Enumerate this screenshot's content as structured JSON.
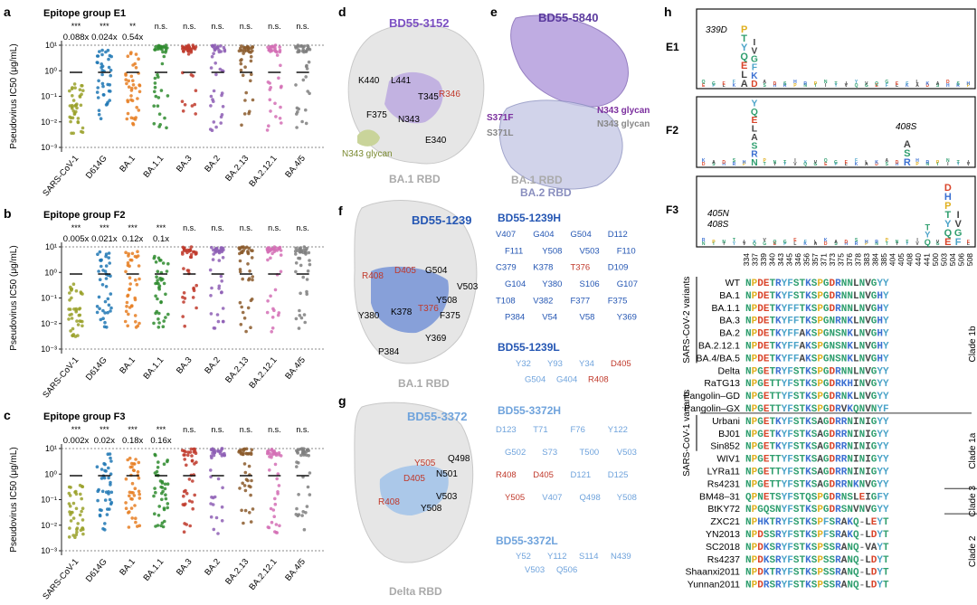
{
  "scatter_panels": [
    {
      "letter": "a",
      "title": "Epitope group E1",
      "ylabel": "Pseudovirus IC50 (μg/mL)",
      "sig": [
        "***",
        "***",
        "**",
        "n.s.",
        "n.s.",
        "n.s.",
        "n.s.",
        "n.s.",
        "n.s."
      ],
      "fold": [
        "0.088x",
        "0.024x",
        "0.54x",
        "",
        "",
        "",
        "",
        "",
        ""
      ]
    },
    {
      "letter": "b",
      "title": "Epitope group F2",
      "ylabel": "Pseudovirus IC50 (μg/mL)",
      "sig": [
        "***",
        "***",
        "***",
        "***",
        "n.s.",
        "n.s.",
        "n.s.",
        "n.s.",
        "n.s."
      ],
      "fold": [
        "0.005x",
        "0.021x",
        "0.12x",
        "0.1x",
        "",
        "",
        "",
        "",
        ""
      ]
    },
    {
      "letter": "c",
      "title": "Epitope group F3",
      "ylabel": "Pseudovirus IC50 (μg/mL)",
      "sig": [
        "***",
        "***",
        "***",
        "***",
        "n.s.",
        "n.s.",
        "n.s.",
        "n.s.",
        "n.s."
      ],
      "fold": [
        "0.002x",
        "0.02x",
        "0.18x",
        "0.16x",
        "",
        "",
        "",
        "",
        ""
      ]
    }
  ],
  "variants": [
    "SARS-CoV-1",
    "D614G",
    "BA.1",
    "BA.1.1",
    "BA.3",
    "BA.2",
    "BA.2.13",
    "BA.2.12.1",
    "BA.4/5"
  ],
  "variant_colors": [
    "#9aa12a",
    "#1f77b4",
    "#e67e22",
    "#2e8b2e",
    "#c0392b",
    "#8e5fb5",
    "#8b5a2b",
    "#d46fb5",
    "#7f7f7f"
  ],
  "y_ticks": [
    "10¹",
    "10⁰",
    "10⁻¹",
    "10⁻²",
    "10⁻³"
  ],
  "structures": {
    "d": {
      "letter": "d",
      "antibody": "BD55-3152",
      "rbd": "BA.1 RBD",
      "residues": [
        "K440",
        "L441",
        "T345",
        "R346",
        "F375",
        "N343",
        "E340"
      ],
      "glycan": "N343 glycan"
    },
    "e": {
      "letter": "e",
      "antibody": "BD55-5840",
      "rbd1": "BA.1 RBD",
      "rbd2": "BA.2 RBD",
      "labels": [
        "S371F",
        "S371L",
        "N343 glycan",
        "N343 glycan"
      ]
    },
    "f": {
      "letter": "f",
      "antibody": "BD55-1239",
      "rbd": "BA.1 RBD",
      "residues": [
        "R408",
        "D405",
        "G504",
        "V503",
        "Y508",
        "K378",
        "T376",
        "F375",
        "Y380",
        "Y369",
        "P384"
      ],
      "heavy": "BD55-1239H",
      "light": "BD55-1239L",
      "heavy_res": [
        "V407",
        "G404",
        "G504",
        "D112",
        "F111",
        "Y508",
        "V503",
        "F110",
        "C379",
        "K378",
        "T376",
        "D109",
        "G104",
        "Y380",
        "S106",
        "G107",
        "T108",
        "V382",
        "F377",
        "F375",
        "P384",
        "V54",
        "V58",
        "Y369"
      ],
      "light_res": [
        "Y32",
        "Y93",
        "Y34",
        "D405",
        "G504",
        "G404",
        "R408"
      ]
    },
    "g": {
      "letter": "g",
      "antibody": "BD55-3372",
      "rbd": "Delta RBD",
      "residues": [
        "Y505",
        "Q498",
        "N501",
        "D405",
        "V503",
        "R408",
        "Y508"
      ],
      "heavy": "BD55-3372H",
      "light": "BD55-3372L",
      "heavy_res": [
        "D123",
        "T71",
        "F76",
        "Y122",
        "G502",
        "S73",
        "T500",
        "V503",
        "R408",
        "D405",
        "D121",
        "D125",
        "Y505",
        "V407",
        "Q498",
        "Y508"
      ],
      "light_res": [
        "Y52",
        "Y112",
        "S114",
        "N439",
        "V503",
        "Q506"
      ]
    }
  },
  "logo": {
    "letter": "h",
    "groups": [
      "E1",
      "F2",
      "F3"
    ],
    "annotations": [
      "339D",
      "408S",
      "405N",
      "408S"
    ],
    "positions": [
      "334",
      "337",
      "339",
      "340",
      "343",
      "345",
      "346",
      "356",
      "357",
      "371",
      "373",
      "375",
      "376",
      "378",
      "383",
      "384",
      "385",
      "404",
      "405",
      "408",
      "440",
      "441",
      "500",
      "503",
      "504",
      "506",
      "508"
    ]
  },
  "alignment": {
    "rows": [
      {
        "name": "WT",
        "seq": "NPDETRYFSTKSPGDRNNLNVGYY"
      },
      {
        "name": "BA.1",
        "seq": "NPDETKYFSTKSPGDRNNLNVGHY"
      },
      {
        "name": "BA.1.1",
        "seq": "NPDETKYFFTKSPGDRNNLNVGHY"
      },
      {
        "name": "BA.3",
        "seq": "NPDETKYFFTKSPGNRNKLNVGHY"
      },
      {
        "name": "BA.2",
        "seq": "NPDETKYFFAKSPGNSNKLNVGHY"
      },
      {
        "name": "BA.2.12.1",
        "seq": "NPDETKYFFAKSPGNSNKLNVGHY"
      },
      {
        "name": "BA.4/BA.5",
        "seq": "NPDETKYFFAKSPGNSNKLNVGHY"
      },
      {
        "name": "Delta",
        "seq": "NPGETRYFSTKSPGDRNNLNVGYY"
      },
      {
        "name": "RaTG13",
        "seq": "NPGETTYFSTKSPGDRKHINVGYY"
      },
      {
        "name": "Pangolin–GD",
        "seq": "NPGETTYFSTKSPGDRNKLNVGYY"
      },
      {
        "name": "Pangolin–GX",
        "seq": "NPGETTYFSTKSPGDRVKQNVNYF"
      },
      {
        "name": "Urbani",
        "seq": "NPGETKYFSTKSAGDRRNINIGYY"
      },
      {
        "name": "BJ01",
        "seq": "NPGETKYFSTKSAGDRRNINIGYY"
      },
      {
        "name": "Sin852",
        "seq": "NPGETKYFSTKSAGDRRNINIGYY"
      },
      {
        "name": "WIV1",
        "seq": "NPGETTYFSTKSAGDRRNINIGYY"
      },
      {
        "name": "LYRa11",
        "seq": "NPGETTYFSTKSAGDRRNINIGYY"
      },
      {
        "name": "Rs4231",
        "seq": "NPGETTYFSTKSAGDRRNKNVGYY"
      },
      {
        "name": "BM48–31",
        "seq": "QPNETSYFSTQSPGDRNSLEIGFY"
      },
      {
        "name": "BtKY72",
        "seq": "NPGQSNYFSTKSPGDRSNVNVGYY"
      },
      {
        "name": "ZXC21",
        "seq": "NPHKTRYFSTKSPFSRAKQ-LEYT"
      },
      {
        "name": "YN2013",
        "seq": "NPDSSRYFSTKSPFSRAKQ-LDYT"
      },
      {
        "name": "SC2018",
        "seq": "NPDKSRYFSTKSPSSRANQ-VAYT"
      },
      {
        "name": "Rs4237",
        "seq": "NPDKSRYFSTKSPSSRANQ-LDYT"
      },
      {
        "name": "Shaanxi2011",
        "seq": "NPDKTRYFSTKSPSSRANQ-LDYT"
      },
      {
        "name": "Yunnan2011",
        "seq": "NPDRSRYFSTKSPSSRANQ-LDYT"
      }
    ],
    "brackets": [
      {
        "label": "SARS-CoV-2 variants",
        "from": 0,
        "to": 6
      },
      {
        "label": "SARS-CoV-1 variants",
        "from": 11,
        "to": 13
      }
    ],
    "clades": [
      {
        "label": "Clade 1b",
        "from": 0,
        "to": 10
      },
      {
        "label": "Clade 1a",
        "from": 11,
        "to": 16
      },
      {
        "label": "Clade 3",
        "from": 17,
        "to": 18
      },
      {
        "label": "Clade 2",
        "from": 19,
        "to": 24
      }
    ],
    "residue_colors": {
      "N": "#2e9e6e",
      "Q": "#2e9e6e",
      "S": "#2e9e6e",
      "T": "#2e9e6e",
      "G": "#2e9e6e",
      "P": "#e0b020",
      "D": "#d9442a",
      "E": "#d9442a",
      "R": "#3a6fd1",
      "K": "#3a6fd1",
      "H": "#3a6fd1",
      "Y": "#4aa3c8",
      "F": "#4aa3c8",
      "W": "#4aa3c8",
      "A": "#444444",
      "L": "#444444",
      "V": "#444444",
      "I": "#444444",
      "M": "#444444",
      "C": "#d8b000",
      "-": "#888888"
    }
  }
}
